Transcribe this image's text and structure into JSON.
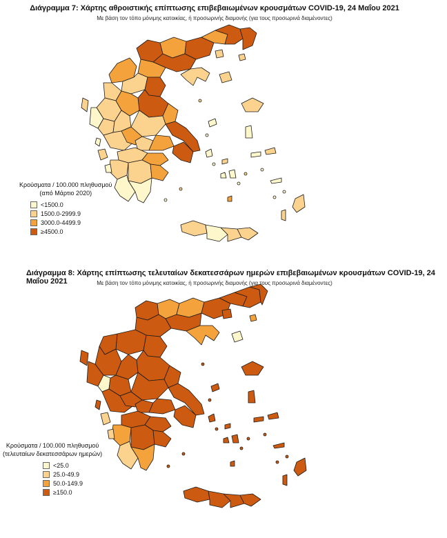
{
  "colors": {
    "outline": "#1a1a1a",
    "water": "#ffffff"
  },
  "map1": {
    "title": "Διάγραμμα 7: Χάρτης αθροιστικής επίπτωσης επιβεβαιωμένων κρουσμάτων COVID-19, 24 Μαΐου 2021",
    "subtitle": "Με βάση τον τόπο μόνιμης κατοικίας, ή προσωρινής διαμονής (για τους προσωρινά διαμένοντες)",
    "legend": {
      "title_line1": "Κρούσματα / 100.000 πληθυσμού",
      "title_line2": "(από Μάρτιο 2020)",
      "items": [
        {
          "label": "<1500.0",
          "color": "#fef7cc"
        },
        {
          "label": "1500.0-2999.9",
          "color": "#fbd28e"
        },
        {
          "label": "3000.0-4499.9",
          "color": "#f4a23c"
        },
        {
          "label": "≥4500.0",
          "color": "#cc5a10"
        }
      ]
    }
  },
  "map2": {
    "title": "Διάγραμμα 8: Χάρτης επίπτωσης τελευταίων δεκατεσσάρων ημερών επιβεβαιωμένων κρουσμάτων COVID-19, 24 Μαΐου 2021",
    "subtitle": "Με βάση τον τόπο μόνιμης κατοικίας, ή προσωρινής διαμονής (για τους προσωρινά διαμένοντες)",
    "legend": {
      "title_line1": "Κρούσματα / 100.000 πληθυσμού",
      "title_line2": "(τελευταίων δεκατεσσάρων ημερών)",
      "items": [
        {
          "label": "<25.0",
          "color": "#fef7cc"
        },
        {
          "label": "25.0-49.9",
          "color": "#fbd28e"
        },
        {
          "label": "50.0-149.9",
          "color": "#f4a23c"
        },
        {
          "label": "≥150.0",
          "color": "#cc5a10"
        }
      ]
    }
  }
}
